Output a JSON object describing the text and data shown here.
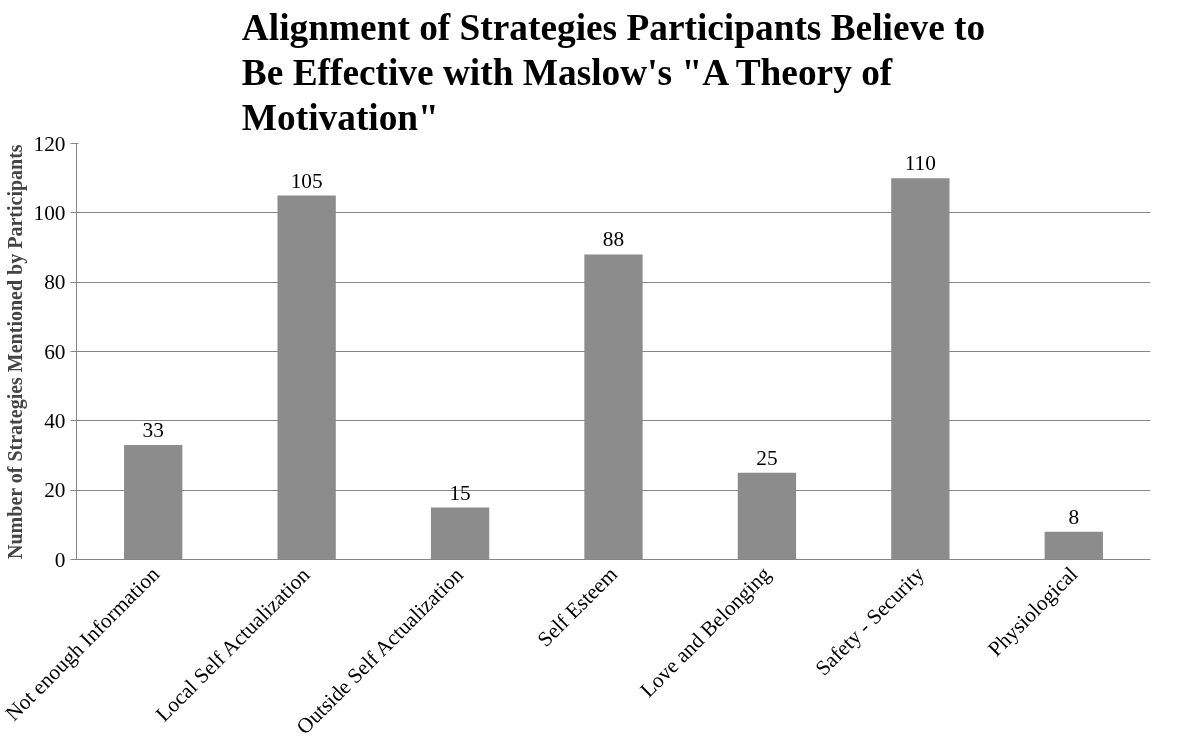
{
  "chart_data": {
    "type": "bar",
    "title": "Alignment of Strategies Participants Believe to Be Effective with Maslow's \"A Theory of Motivation\"",
    "ylabel": "Number of Strategies Mentioned by Participants",
    "categories": [
      "Not enough Information",
      "Local Self Actualization",
      "Outside Self Actualization",
      "Self Esteem",
      "Love and Belonging",
      "Safety - Security",
      "Physiological"
    ],
    "values": [
      33,
      105,
      15,
      88,
      25,
      110,
      8
    ],
    "color": "#8c8c8c",
    "ylim": [
      0,
      120
    ],
    "yticks": [
      0,
      20,
      40,
      60,
      80,
      100,
      120
    ],
    "grid": "y",
    "data_labels": true
  }
}
